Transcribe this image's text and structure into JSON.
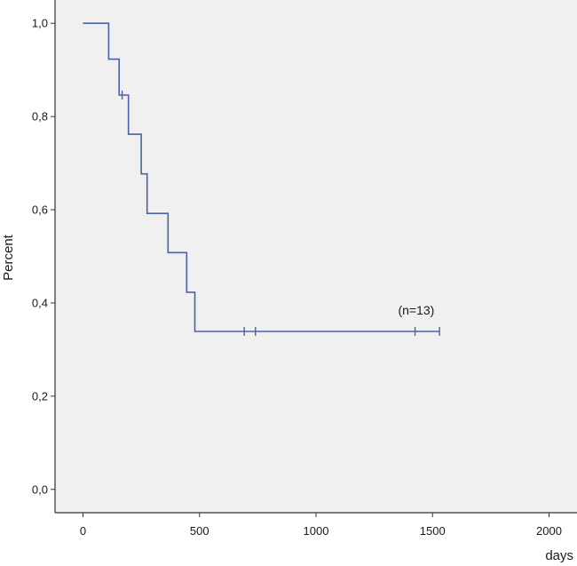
{
  "chart_data": {
    "type": "line",
    "step": true,
    "xlabel": "days",
    "ylabel": "Percent",
    "xlim": [
      -120,
      2120
    ],
    "ylim": [
      -0.05,
      1.05
    ],
    "x_ticks": [
      0,
      500,
      1000,
      1500,
      2000
    ],
    "x_tick_labels": [
      "0",
      "500",
      "1000",
      "1500",
      "2000"
    ],
    "y_ticks": [
      0.0,
      0.2,
      0.4,
      0.6,
      0.8,
      1.0
    ],
    "y_tick_labels": [
      "0,0",
      "0,2",
      "0,4",
      "0,6",
      "0,8",
      "1,0"
    ],
    "grid": false,
    "legend": "none",
    "plot_background": "#f0f0f0",
    "line_color": "#4a62a8",
    "series": [
      {
        "x": [
          0,
          110,
          155,
          195,
          250,
          275,
          365,
          445,
          480,
          1530
        ],
        "y": [
          1.0,
          0.923,
          0.846,
          0.762,
          0.677,
          0.592,
          0.508,
          0.423,
          0.339,
          0.339
        ],
        "censored": [
          {
            "x": 168,
            "y": 0.846
          },
          {
            "x": 692,
            "y": 0.339
          },
          {
            "x": 740,
            "y": 0.339
          },
          {
            "x": 1425,
            "y": 0.339
          },
          {
            "x": 1530,
            "y": 0.339
          }
        ]
      }
    ],
    "annotations": [
      {
        "text": "(n=13)",
        "x": 1430,
        "y": 0.375
      }
    ]
  }
}
